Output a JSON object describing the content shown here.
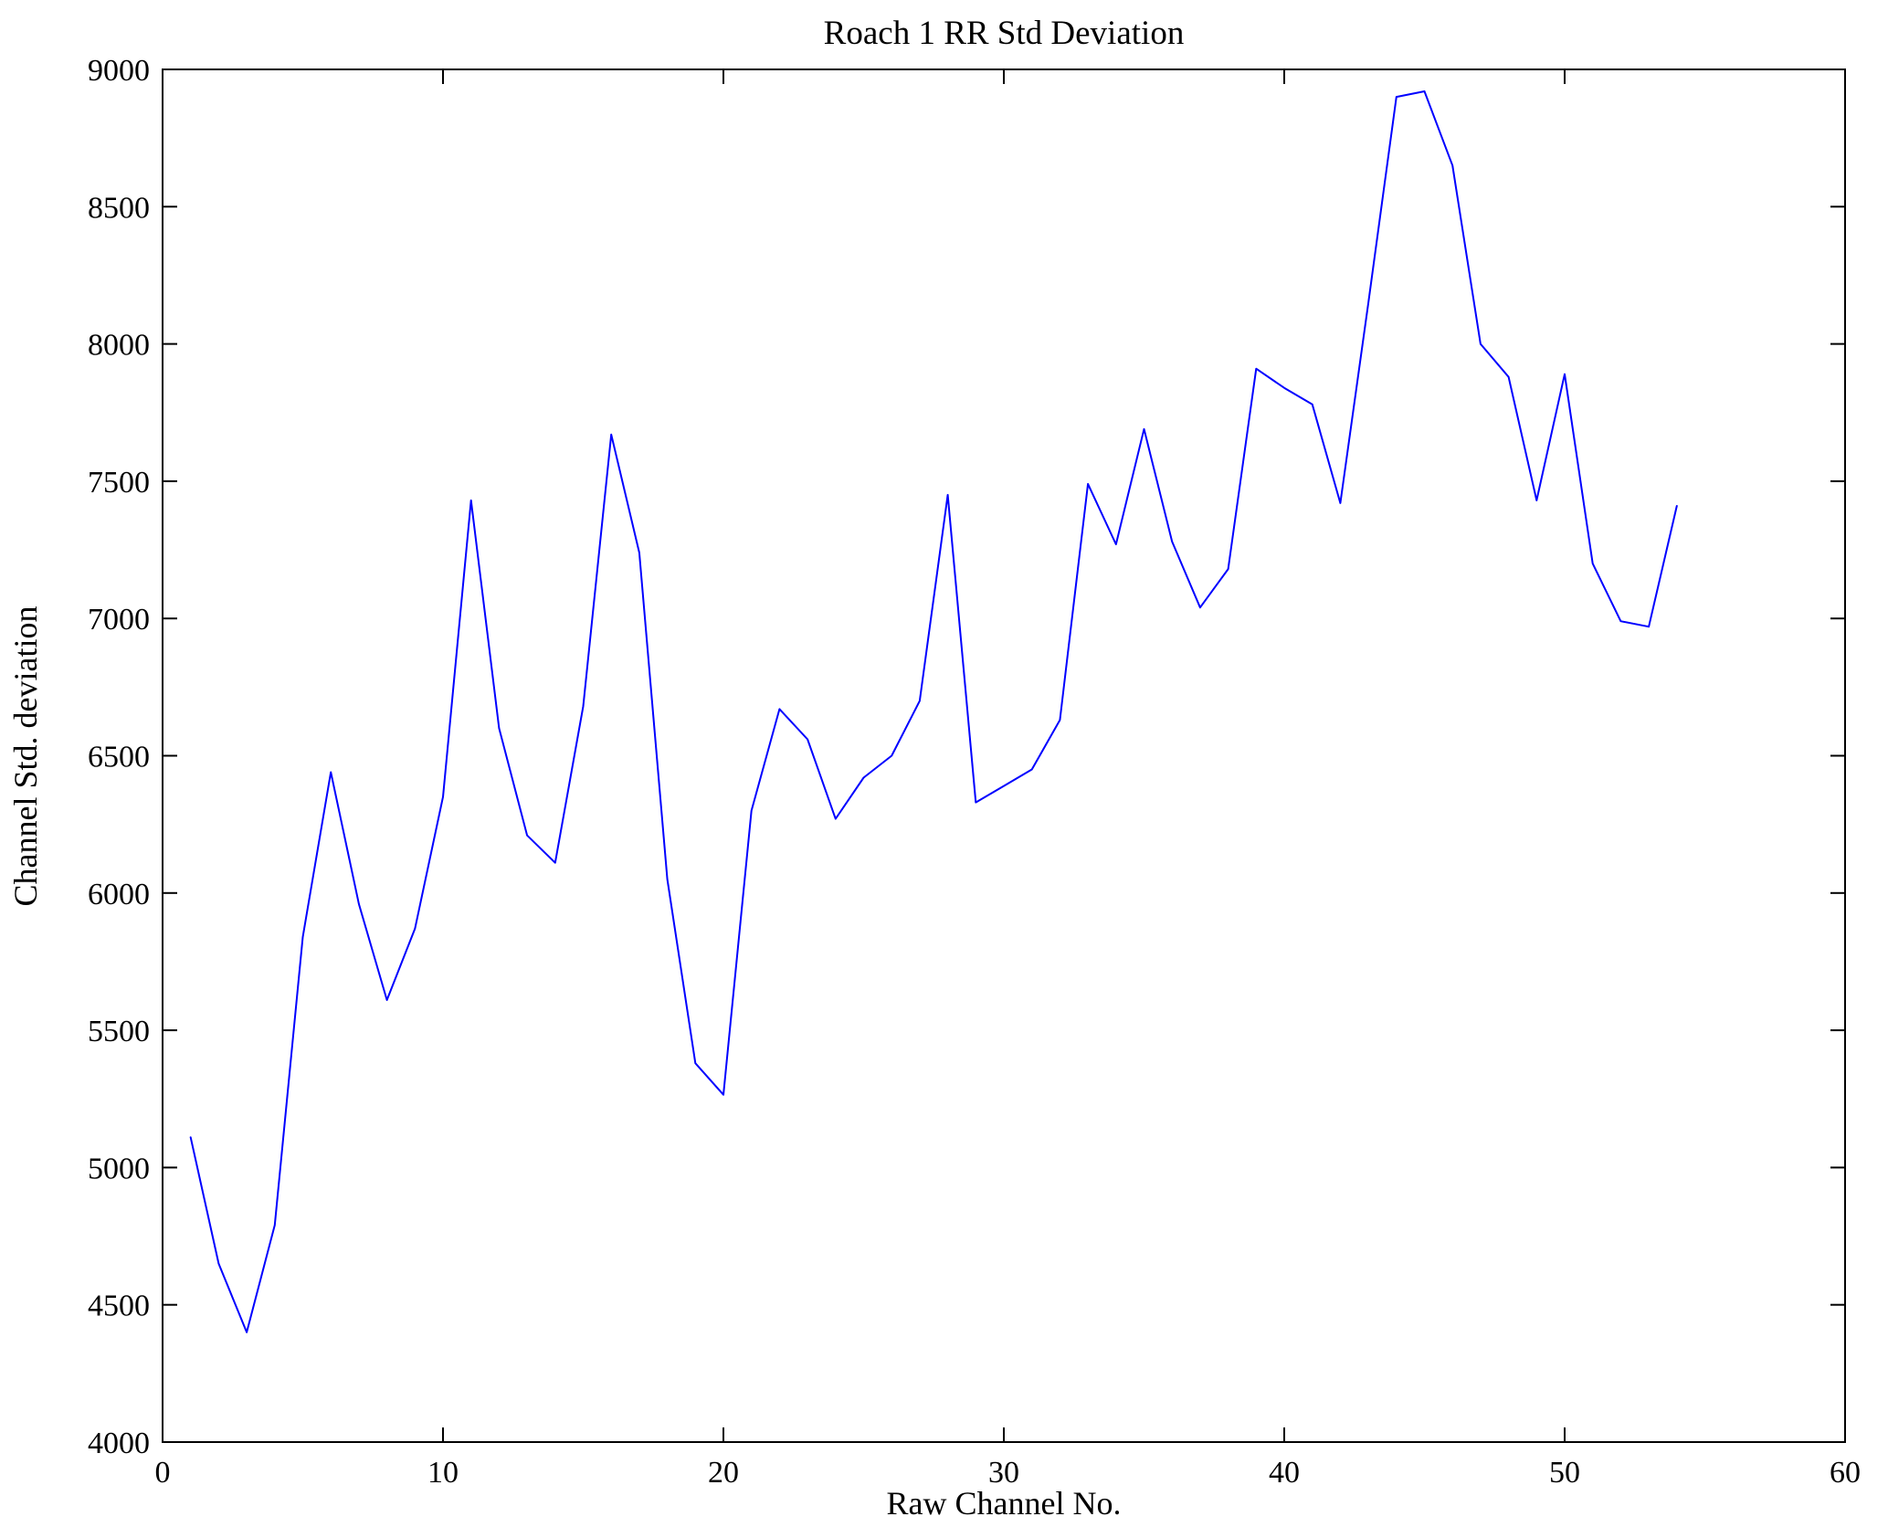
{
  "figure": {
    "background": "#ffffff",
    "frame_color": "#000000"
  },
  "chart_data": {
    "type": "line",
    "title": "Roach 1 RR Std Deviation",
    "xlabel": "Raw Channel No.",
    "ylabel": "Channel Std. deviation",
    "xlim": [
      0,
      60
    ],
    "ylim": [
      4000,
      9000
    ],
    "xticks": [
      0,
      10,
      20,
      30,
      40,
      50,
      60
    ],
    "yticks": [
      4000,
      4500,
      5000,
      5500,
      6000,
      6500,
      7000,
      7500,
      8000,
      8500,
      9000
    ],
    "grid": false,
    "legend": "none",
    "line_color": "#0000ff",
    "x": [
      1,
      2,
      3,
      4,
      5,
      6,
      7,
      8,
      9,
      10,
      11,
      12,
      13,
      14,
      15,
      16,
      17,
      18,
      19,
      20,
      21,
      22,
      23,
      24,
      25,
      26,
      27,
      28,
      29,
      30,
      31,
      32,
      33,
      34,
      35,
      36,
      37,
      38,
      39,
      40,
      41,
      42,
      43,
      44,
      45,
      46,
      47,
      48,
      49,
      50,
      51,
      52,
      53,
      54
    ],
    "y": [
      5110,
      4650,
      4400,
      4790,
      5840,
      6440,
      5960,
      5610,
      5870,
      6350,
      7430,
      6600,
      6210,
      6110,
      6680,
      7670,
      7240,
      6050,
      5380,
      5265,
      6300,
      6670,
      6560,
      6270,
      6420,
      6500,
      6700,
      7450,
      6330,
      6390,
      6450,
      6630,
      7490,
      7270,
      7690,
      7280,
      7040,
      7180,
      7910,
      7840,
      7780,
      7420,
      8150,
      8900,
      8920,
      8650,
      8000,
      7880,
      7430,
      7890,
      7200,
      6990,
      6970,
      7410
    ]
  }
}
